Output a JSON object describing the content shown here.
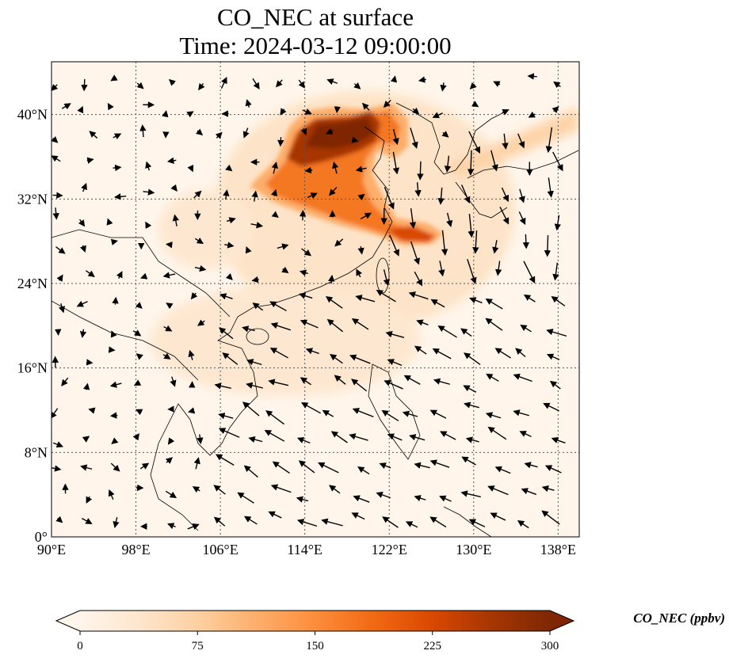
{
  "title": {
    "line1": "CO_NEC at surface",
    "line2": "Time: 2024-03-12 09:00:00"
  },
  "map": {
    "lon_range": [
      90,
      140
    ],
    "lat_range": [
      0,
      45
    ],
    "lon_ticks": [
      {
        "value": 90,
        "label": "90°E"
      },
      {
        "value": 98,
        "label": "98°E"
      },
      {
        "value": 106,
        "label": "106°E"
      },
      {
        "value": 114,
        "label": "114°E"
      },
      {
        "value": 122,
        "label": "122°E"
      },
      {
        "value": 130,
        "label": "130°E"
      },
      {
        "value": 138,
        "label": "138°E"
      }
    ],
    "lat_ticks": [
      {
        "value": 0,
        "label": "0°"
      },
      {
        "value": 8,
        "label": "8°N"
      },
      {
        "value": 16,
        "label": "16°N"
      },
      {
        "value": 24,
        "label": "24°N"
      },
      {
        "value": 32,
        "label": "32°N"
      },
      {
        "value": 40,
        "label": "40°N"
      }
    ],
    "gridlines": true,
    "wind_vectors": true,
    "colors": {
      "background": "#fff5eb",
      "coast": "#000000",
      "grid": "#555555"
    }
  },
  "colorbar": {
    "title": "CO_NEC (ppbv)",
    "min": 0,
    "max": 300,
    "ticks": [
      {
        "value": 0,
        "label": "0"
      },
      {
        "value": 75,
        "label": "75"
      },
      {
        "value": 150,
        "label": "150"
      },
      {
        "value": 225,
        "label": "225"
      },
      {
        "value": 300,
        "label": "300"
      }
    ],
    "extend": "both",
    "colormap": [
      "#fff5eb",
      "#fee6ce",
      "#fdd0a2",
      "#fdae6b",
      "#fd8d3c",
      "#f16913",
      "#d94801",
      "#a63603",
      "#7f2704"
    ]
  }
}
